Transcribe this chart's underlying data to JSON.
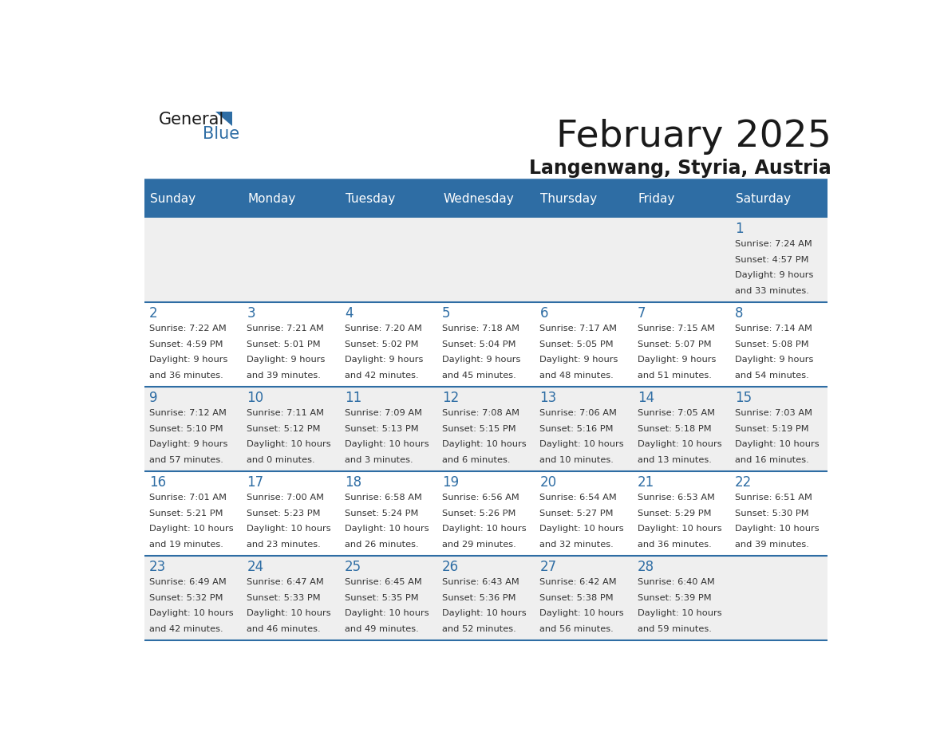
{
  "title": "February 2025",
  "subtitle": "Langenwang, Styria, Austria",
  "days_of_week": [
    "Sunday",
    "Monday",
    "Tuesday",
    "Wednesday",
    "Thursday",
    "Friday",
    "Saturday"
  ],
  "header_bg": "#2e6da4",
  "header_text": "#ffffff",
  "cell_bg_light": "#efefef",
  "cell_bg_white": "#ffffff",
  "day_num_color": "#2e6da4",
  "text_color": "#333333",
  "line_color": "#2e6da4",
  "calendar_data": [
    [
      {
        "day": null,
        "sunrise": null,
        "sunset": null,
        "daylight": null
      },
      {
        "day": null,
        "sunrise": null,
        "sunset": null,
        "daylight": null
      },
      {
        "day": null,
        "sunrise": null,
        "sunset": null,
        "daylight": null
      },
      {
        "day": null,
        "sunrise": null,
        "sunset": null,
        "daylight": null
      },
      {
        "day": null,
        "sunrise": null,
        "sunset": null,
        "daylight": null
      },
      {
        "day": null,
        "sunrise": null,
        "sunset": null,
        "daylight": null
      },
      {
        "day": 1,
        "sunrise": "7:24 AM",
        "sunset": "4:57 PM",
        "daylight": "9 hours\nand 33 minutes."
      }
    ],
    [
      {
        "day": 2,
        "sunrise": "7:22 AM",
        "sunset": "4:59 PM",
        "daylight": "9 hours\nand 36 minutes."
      },
      {
        "day": 3,
        "sunrise": "7:21 AM",
        "sunset": "5:01 PM",
        "daylight": "9 hours\nand 39 minutes."
      },
      {
        "day": 4,
        "sunrise": "7:20 AM",
        "sunset": "5:02 PM",
        "daylight": "9 hours\nand 42 minutes."
      },
      {
        "day": 5,
        "sunrise": "7:18 AM",
        "sunset": "5:04 PM",
        "daylight": "9 hours\nand 45 minutes."
      },
      {
        "day": 6,
        "sunrise": "7:17 AM",
        "sunset": "5:05 PM",
        "daylight": "9 hours\nand 48 minutes."
      },
      {
        "day": 7,
        "sunrise": "7:15 AM",
        "sunset": "5:07 PM",
        "daylight": "9 hours\nand 51 minutes."
      },
      {
        "day": 8,
        "sunrise": "7:14 AM",
        "sunset": "5:08 PM",
        "daylight": "9 hours\nand 54 minutes."
      }
    ],
    [
      {
        "day": 9,
        "sunrise": "7:12 AM",
        "sunset": "5:10 PM",
        "daylight": "9 hours\nand 57 minutes."
      },
      {
        "day": 10,
        "sunrise": "7:11 AM",
        "sunset": "5:12 PM",
        "daylight": "10 hours\nand 0 minutes."
      },
      {
        "day": 11,
        "sunrise": "7:09 AM",
        "sunset": "5:13 PM",
        "daylight": "10 hours\nand 3 minutes."
      },
      {
        "day": 12,
        "sunrise": "7:08 AM",
        "sunset": "5:15 PM",
        "daylight": "10 hours\nand 6 minutes."
      },
      {
        "day": 13,
        "sunrise": "7:06 AM",
        "sunset": "5:16 PM",
        "daylight": "10 hours\nand 10 minutes."
      },
      {
        "day": 14,
        "sunrise": "7:05 AM",
        "sunset": "5:18 PM",
        "daylight": "10 hours\nand 13 minutes."
      },
      {
        "day": 15,
        "sunrise": "7:03 AM",
        "sunset": "5:19 PM",
        "daylight": "10 hours\nand 16 minutes."
      }
    ],
    [
      {
        "day": 16,
        "sunrise": "7:01 AM",
        "sunset": "5:21 PM",
        "daylight": "10 hours\nand 19 minutes."
      },
      {
        "day": 17,
        "sunrise": "7:00 AM",
        "sunset": "5:23 PM",
        "daylight": "10 hours\nand 23 minutes."
      },
      {
        "day": 18,
        "sunrise": "6:58 AM",
        "sunset": "5:24 PM",
        "daylight": "10 hours\nand 26 minutes."
      },
      {
        "day": 19,
        "sunrise": "6:56 AM",
        "sunset": "5:26 PM",
        "daylight": "10 hours\nand 29 minutes."
      },
      {
        "day": 20,
        "sunrise": "6:54 AM",
        "sunset": "5:27 PM",
        "daylight": "10 hours\nand 32 minutes."
      },
      {
        "day": 21,
        "sunrise": "6:53 AM",
        "sunset": "5:29 PM",
        "daylight": "10 hours\nand 36 minutes."
      },
      {
        "day": 22,
        "sunrise": "6:51 AM",
        "sunset": "5:30 PM",
        "daylight": "10 hours\nand 39 minutes."
      }
    ],
    [
      {
        "day": 23,
        "sunrise": "6:49 AM",
        "sunset": "5:32 PM",
        "daylight": "10 hours\nand 42 minutes."
      },
      {
        "day": 24,
        "sunrise": "6:47 AM",
        "sunset": "5:33 PM",
        "daylight": "10 hours\nand 46 minutes."
      },
      {
        "day": 25,
        "sunrise": "6:45 AM",
        "sunset": "5:35 PM",
        "daylight": "10 hours\nand 49 minutes."
      },
      {
        "day": 26,
        "sunrise": "6:43 AM",
        "sunset": "5:36 PM",
        "daylight": "10 hours\nand 52 minutes."
      },
      {
        "day": 27,
        "sunrise": "6:42 AM",
        "sunset": "5:38 PM",
        "daylight": "10 hours\nand 56 minutes."
      },
      {
        "day": 28,
        "sunrise": "6:40 AM",
        "sunset": "5:39 PM",
        "daylight": "10 hours\nand 59 minutes."
      },
      {
        "day": null,
        "sunrise": null,
        "sunset": null,
        "daylight": null
      }
    ]
  ]
}
